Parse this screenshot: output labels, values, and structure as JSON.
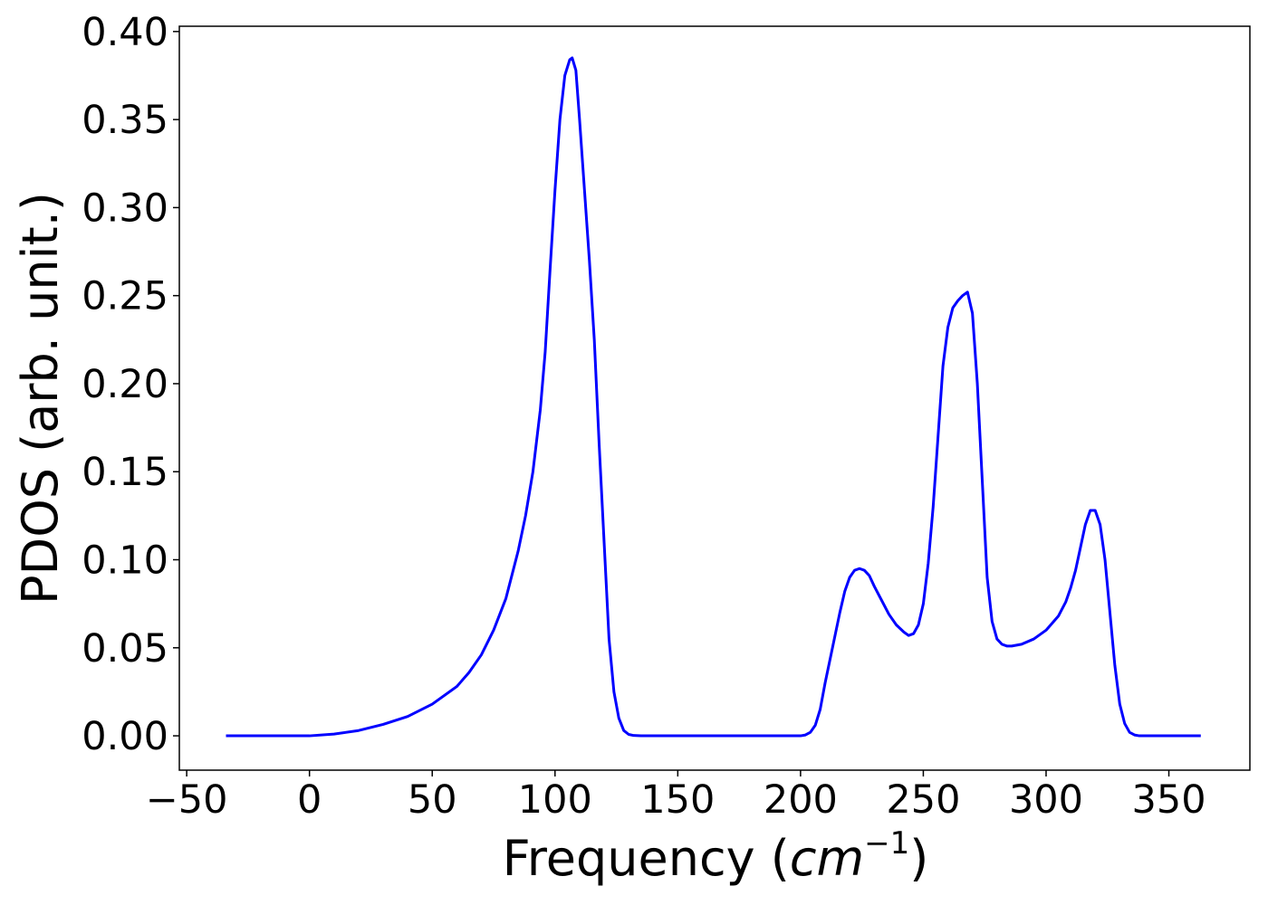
{
  "chart_data": {
    "type": "line",
    "title": "",
    "xlabel_main": "Frequency (",
    "xlabel_unit": "cm",
    "xlabel_exponent": "−1",
    "xlabel_close": ")",
    "ylabel": "PDOS (arb. unit.)",
    "xlim": [
      -53,
      383
    ],
    "ylim": [
      -0.0195,
      0.403
    ],
    "xticks": [
      -50,
      0,
      50,
      100,
      150,
      200,
      250,
      300,
      350
    ],
    "xtick_labels": [
      "−50",
      "0",
      "50",
      "100",
      "150",
      "200",
      "250",
      "300",
      "350"
    ],
    "yticks": [
      0.0,
      0.05,
      0.1,
      0.15,
      0.2,
      0.25,
      0.3,
      0.35,
      0.4
    ],
    "ytick_labels": [
      "0.00",
      "0.05",
      "0.10",
      "0.15",
      "0.20",
      "0.25",
      "0.30",
      "0.35",
      "0.40"
    ],
    "grid": false,
    "color": "#0000ff",
    "series": [
      {
        "x": [
          -34,
          -20,
          0,
          10,
          20,
          30,
          40,
          50,
          60,
          65,
          70,
          75,
          80,
          85,
          88,
          91,
          94,
          96,
          98,
          100,
          102,
          104,
          106,
          107,
          108.5,
          110,
          112,
          114,
          116,
          118,
          120,
          122,
          124,
          126,
          128,
          130,
          132,
          135,
          140,
          150,
          160,
          180,
          200,
          202,
          204,
          206,
          208,
          210,
          213,
          216,
          218,
          220,
          222,
          224,
          226,
          228,
          230,
          233,
          236,
          239,
          242,
          244,
          246,
          248,
          250,
          252,
          254,
          256,
          258,
          260,
          262,
          264,
          266,
          268,
          270,
          272,
          274,
          276,
          278,
          280,
          282,
          284,
          286,
          290,
          295,
          300,
          305,
          308,
          310,
          312,
          314,
          316,
          318,
          320,
          322,
          324,
          326,
          328,
          330,
          332,
          334,
          336,
          338,
          340,
          350,
          363
        ],
        "y": [
          0.0,
          0.0,
          0.0,
          0.001,
          0.003,
          0.0065,
          0.011,
          0.018,
          0.028,
          0.036,
          0.046,
          0.06,
          0.078,
          0.105,
          0.125,
          0.15,
          0.185,
          0.218,
          0.265,
          0.31,
          0.35,
          0.375,
          0.384,
          0.385,
          0.378,
          0.35,
          0.31,
          0.27,
          0.225,
          0.165,
          0.11,
          0.055,
          0.025,
          0.01,
          0.003,
          0.0008,
          0.0002,
          0.0,
          0.0,
          0.0,
          0.0,
          0.0,
          0.0,
          0.0005,
          0.002,
          0.006,
          0.015,
          0.03,
          0.05,
          0.07,
          0.082,
          0.09,
          0.094,
          0.095,
          0.094,
          0.091,
          0.085,
          0.077,
          0.069,
          0.063,
          0.059,
          0.057,
          0.058,
          0.063,
          0.075,
          0.098,
          0.13,
          0.17,
          0.21,
          0.232,
          0.243,
          0.247,
          0.25,
          0.252,
          0.24,
          0.2,
          0.145,
          0.09,
          0.065,
          0.055,
          0.052,
          0.051,
          0.051,
          0.052,
          0.055,
          0.06,
          0.068,
          0.076,
          0.084,
          0.094,
          0.107,
          0.12,
          0.128,
          0.128,
          0.12,
          0.1,
          0.07,
          0.04,
          0.018,
          0.007,
          0.002,
          0.0005,
          0.0,
          0.0,
          0.0,
          0.0
        ]
      }
    ]
  }
}
